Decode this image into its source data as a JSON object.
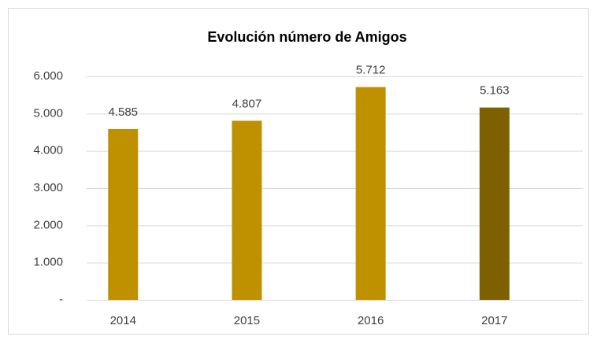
{
  "chart_data": {
    "type": "bar",
    "title": "Evolución número de Amigos",
    "categories": [
      "2014",
      "2015",
      "2016",
      "2017"
    ],
    "values": [
      4585,
      4807,
      5712,
      5163
    ],
    "value_labels": [
      "4.585",
      "4.807",
      "5.712",
      "5.163"
    ],
    "colors": [
      "#bf9000",
      "#bf9000",
      "#bf9000",
      "#7f6000"
    ],
    "ylim": [
      0,
      6000
    ],
    "yticks": [
      {
        "value": 0,
        "label": "-"
      },
      {
        "value": 1000,
        "label": "1.000"
      },
      {
        "value": 2000,
        "label": "2.000"
      },
      {
        "value": 3000,
        "label": "3.000"
      },
      {
        "value": 4000,
        "label": "4.000"
      },
      {
        "value": 5000,
        "label": "5.000"
      },
      {
        "value": 6000,
        "label": "6.000"
      }
    ],
    "grid": true
  }
}
